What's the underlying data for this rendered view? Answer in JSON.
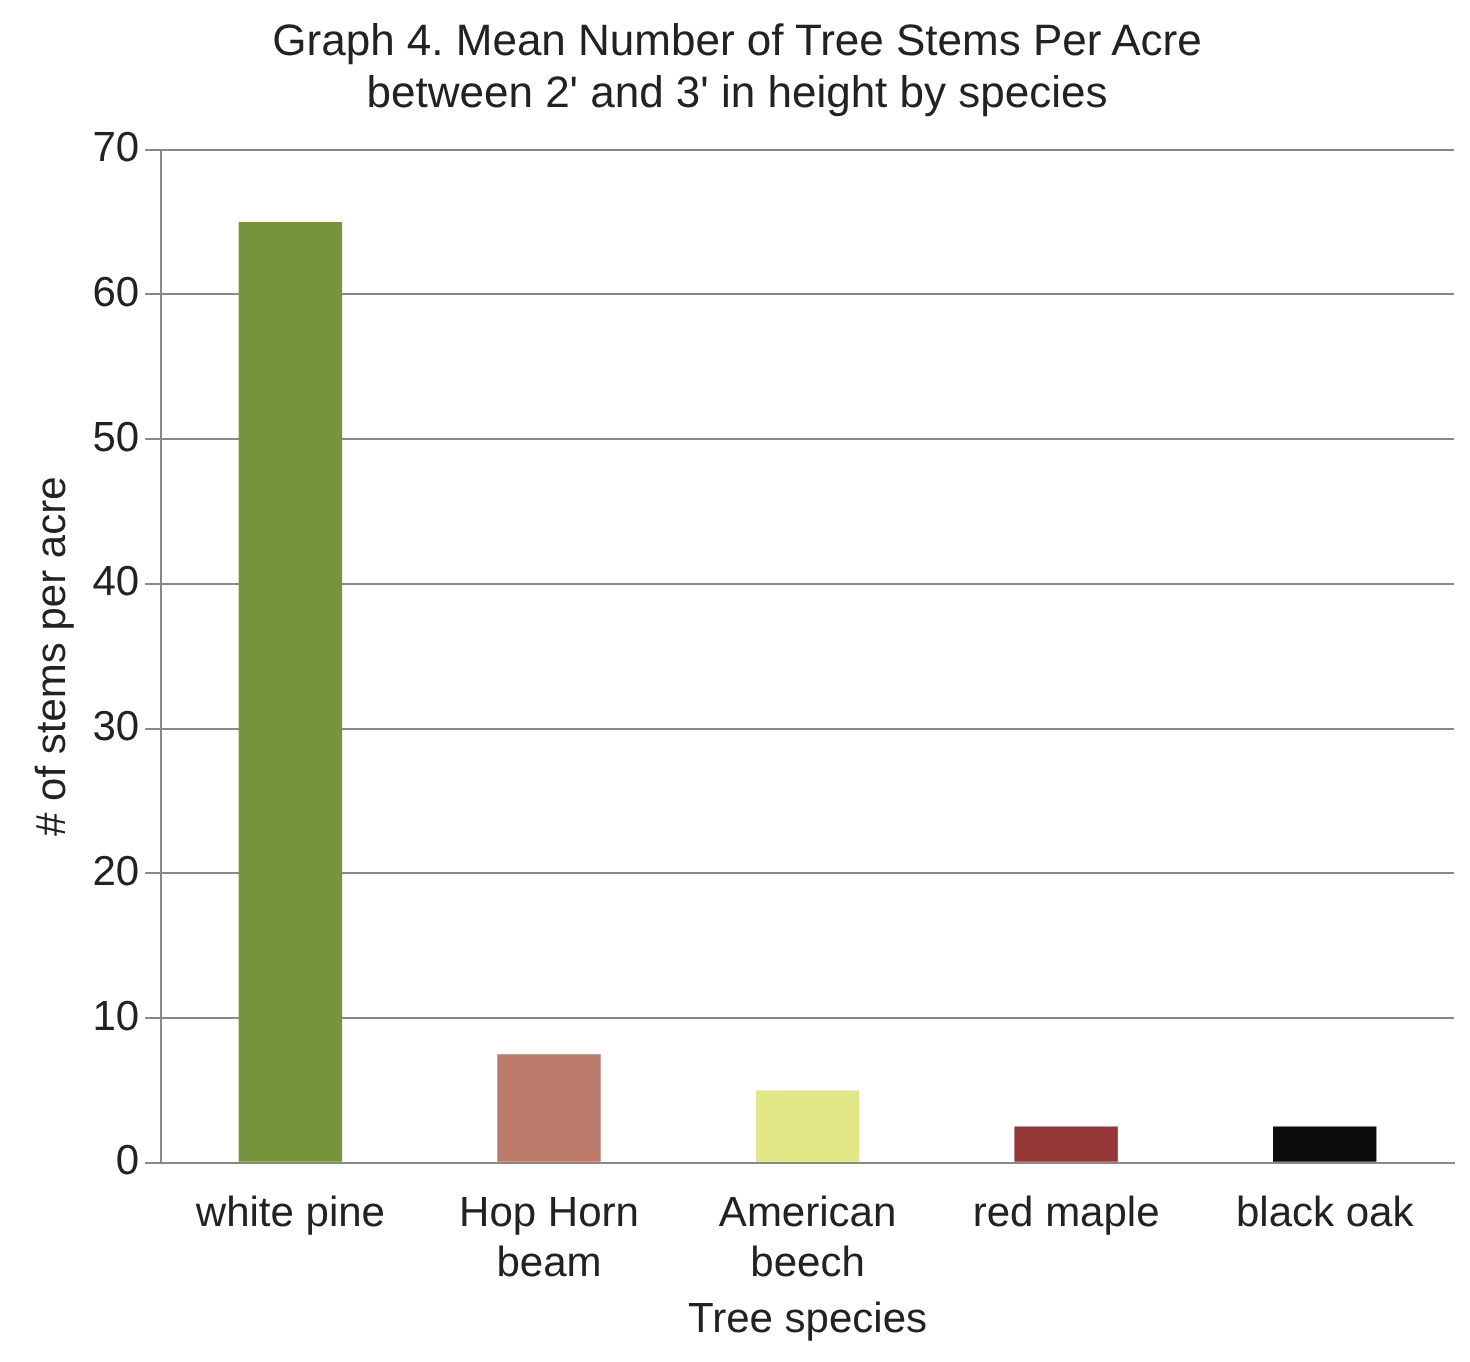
{
  "chart_data": {
    "type": "bar",
    "title": "Graph 4. Mean Number of Tree Stems Per Acre between 2' and 3' in height by species",
    "xlabel": "Tree species",
    "ylabel": "# of stems per acre",
    "categories": [
      "white pine",
      "Hop Horn beam",
      "American beech",
      "red maple",
      "black oak"
    ],
    "values": [
      65,
      7.5,
      5,
      2.5,
      2.5
    ],
    "colors": [
      "#77933c",
      "#bd7b6c",
      "#e1e686",
      "#953735",
      "#0c0c0c"
    ],
    "ylim": [
      0,
      70
    ],
    "yticks": [
      0,
      10,
      20,
      30,
      40,
      50,
      60,
      70
    ],
    "grid": "y",
    "legend": false
  }
}
